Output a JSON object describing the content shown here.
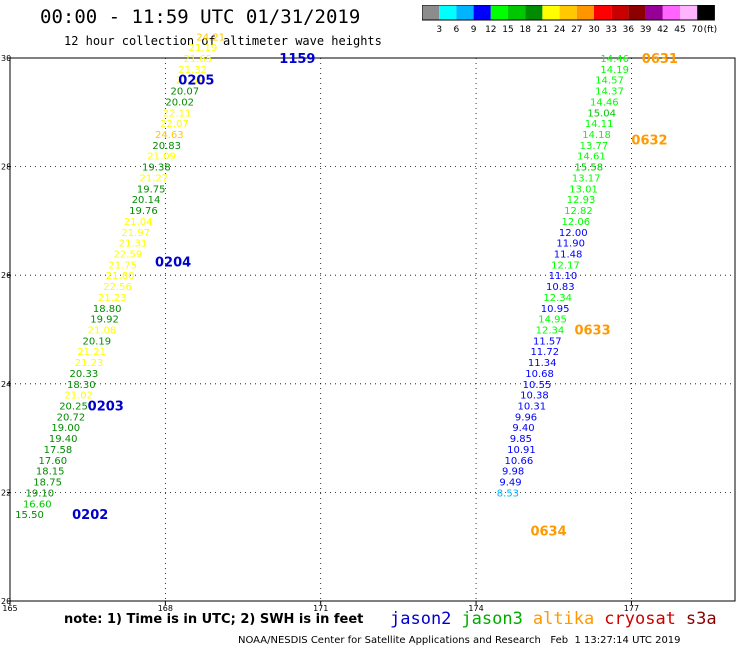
{
  "header": {
    "title": "00:00 - 11:59 UTC 01/31/2019",
    "subtitle": "12 hour collection of altimeter wave heights"
  },
  "colorbar": {
    "unit": "(ft)",
    "ticks": [
      "3",
      "6",
      "9",
      "12",
      "15",
      "18",
      "21",
      "24",
      "27",
      "30",
      "33",
      "36",
      "39",
      "42",
      "45",
      "70"
    ],
    "colors": [
      "#8c8c8c",
      "#00ffff",
      "#00b4ff",
      "#0000ff",
      "#00ff00",
      "#00c800",
      "#008c00",
      "#ffff00",
      "#ffc800",
      "#ff9600",
      "#ff0000",
      "#c80000",
      "#8c0000",
      "#960096",
      "#ff64ff",
      "#ffb4ff",
      "#000000"
    ]
  },
  "footer": {
    "note": "note: 1) Time is in UTC; 2) SWH is in feet",
    "credit": "NOAA/NESDIS Center for Satellite Applications and Research   Feb  1 13:27:14 UTC 2019"
  },
  "legend": [
    {
      "name": "jason2",
      "color": "#0000cc"
    },
    {
      "name": "jason3",
      "color": "#00aa00"
    },
    {
      "name": "altika",
      "color": "#ff9900"
    },
    {
      "name": "cryosat",
      "color": "#cc0000"
    },
    {
      "name": "s3a",
      "color": "#880000"
    }
  ],
  "chart_data": {
    "type": "scatter",
    "xlim": [
      165,
      179
    ],
    "ylim": [
      20,
      30
    ],
    "xticks": [
      "165",
      "168",
      "171",
      "174",
      "177"
    ],
    "yticks": [
      "20",
      "22",
      "24",
      "26",
      "28",
      "30"
    ],
    "grid": true,
    "passes": [
      {
        "lon": 166.2,
        "lat": 21.6,
        "text": "0202",
        "color": "#0000cc"
      },
      {
        "lon": 166.5,
        "lat": 23.6,
        "text": "0203",
        "color": "#0000cc"
      },
      {
        "lon": 167.8,
        "lat": 26.25,
        "text": "0204",
        "color": "#0000cc"
      },
      {
        "lon": 168.25,
        "lat": 29.6,
        "text": "0205",
        "color": "#0000cc"
      },
      {
        "lon": 170.2,
        "lat": 30.0,
        "text": "1159",
        "color": "#0000cc"
      },
      {
        "lon": 177.2,
        "lat": 30.0,
        "text": "0631",
        "color": "#ff9900"
      },
      {
        "lon": 177.0,
        "lat": 28.5,
        "text": "0632",
        "color": "#ff9900"
      },
      {
        "lon": 175.9,
        "lat": 25.0,
        "text": "0633",
        "color": "#ff9900"
      },
      {
        "lon": 175.05,
        "lat": 21.3,
        "text": "0634",
        "color": "#ff9900"
      }
    ],
    "series": [
      {
        "name": "altika",
        "points": [
          {
            "lon": 165.1,
            "lat": 21.6,
            "value": "15.50",
            "color": "#008c00"
          },
          {
            "lon": 165.25,
            "lat": 21.8,
            "value": "16.60",
            "color": "#00c800"
          },
          {
            "lon": 165.3,
            "lat": 22.0,
            "value": "19.10",
            "color": "#008c00"
          },
          {
            "lon": 165.45,
            "lat": 22.2,
            "value": "18.75",
            "color": "#008c00"
          },
          {
            "lon": 165.5,
            "lat": 22.4,
            "value": "18.15",
            "color": "#008c00"
          },
          {
            "lon": 165.55,
            "lat": 22.6,
            "value": "17.60",
            "color": "#008c00"
          },
          {
            "lon": 165.65,
            "lat": 22.8,
            "value": "17.58",
            "color": "#008c00"
          },
          {
            "lon": 165.75,
            "lat": 23.0,
            "value": "19.40",
            "color": "#008c00"
          },
          {
            "lon": 165.8,
            "lat": 23.2,
            "value": "19.00",
            "color": "#008c00"
          },
          {
            "lon": 165.9,
            "lat": 23.4,
            "value": "20.72",
            "color": "#008c00"
          },
          {
            "lon": 165.95,
            "lat": 23.6,
            "value": "20.25",
            "color": "#008c00"
          },
          {
            "lon": 166.05,
            "lat": 23.8,
            "value": "21.02",
            "color": "#ffff00"
          },
          {
            "lon": 166.1,
            "lat": 24.0,
            "value": "18.30",
            "color": "#008c00"
          },
          {
            "lon": 166.15,
            "lat": 24.2,
            "value": "20.33",
            "color": "#008c00"
          },
          {
            "lon": 166.25,
            "lat": 24.4,
            "value": "21.23",
            "color": "#ffff00"
          },
          {
            "lon": 166.3,
            "lat": 24.6,
            "value": "21.21",
            "color": "#ffff00"
          },
          {
            "lon": 166.4,
            "lat": 24.8,
            "value": "20.19",
            "color": "#008c00"
          },
          {
            "lon": 166.5,
            "lat": 25.0,
            "value": "21.08",
            "color": "#ffff00"
          },
          {
            "lon": 166.55,
            "lat": 25.2,
            "value": "19.92",
            "color": "#008c00"
          },
          {
            "lon": 166.6,
            "lat": 25.4,
            "value": "18.80",
            "color": "#008c00"
          },
          {
            "lon": 166.7,
            "lat": 25.6,
            "value": "21.23",
            "color": "#ffff00"
          },
          {
            "lon": 166.8,
            "lat": 25.8,
            "value": "22.56",
            "color": "#ffff00"
          },
          {
            "lon": 166.85,
            "lat": 26.0,
            "value": "21.80",
            "color": "#ffff00"
          },
          {
            "lon": 166.9,
            "lat": 26.2,
            "value": "21.75",
            "color": "#ffff00"
          },
          {
            "lon": 167.0,
            "lat": 26.4,
            "value": "22.59",
            "color": "#ffff00"
          },
          {
            "lon": 167.1,
            "lat": 26.6,
            "value": "21.31",
            "color": "#ffff00"
          },
          {
            "lon": 167.15,
            "lat": 26.8,
            "value": "21.97",
            "color": "#ffff00"
          },
          {
            "lon": 167.2,
            "lat": 27.0,
            "value": "21.04",
            "color": "#ffff00"
          },
          {
            "lon": 167.3,
            "lat": 27.2,
            "value": "19.76",
            "color": "#008c00"
          },
          {
            "lon": 167.35,
            "lat": 27.4,
            "value": "20.14",
            "color": "#008c00"
          },
          {
            "lon": 167.45,
            "lat": 27.6,
            "value": "19.75",
            "color": "#008c00"
          },
          {
            "lon": 167.5,
            "lat": 27.8,
            "value": "21.27",
            "color": "#ffff00"
          },
          {
            "lon": 167.55,
            "lat": 28.0,
            "value": "19.38",
            "color": "#008c00"
          },
          {
            "lon": 167.65,
            "lat": 28.2,
            "value": "21.09",
            "color": "#ffff00"
          },
          {
            "lon": 167.75,
            "lat": 28.4,
            "value": "20.83",
            "color": "#008c00"
          },
          {
            "lon": 167.8,
            "lat": 28.6,
            "value": "24.63",
            "color": "#ffc800"
          },
          {
            "lon": 167.9,
            "lat": 28.8,
            "value": "22.07",
            "color": "#ffff00"
          },
          {
            "lon": 167.95,
            "lat": 29.0,
            "value": "22.11",
            "color": "#ffff00"
          },
          {
            "lon": 168.0,
            "lat": 29.2,
            "value": "20.02",
            "color": "#008c00"
          },
          {
            "lon": 168.1,
            "lat": 29.4,
            "value": "20.07",
            "color": "#008c00"
          },
          {
            "lon": 168.2,
            "lat": 29.6,
            "value": "21.69",
            "color": "#ffff00"
          },
          {
            "lon": 168.25,
            "lat": 29.8,
            "value": "21.32",
            "color": "#ffff00"
          },
          {
            "lon": 168.35,
            "lat": 30.0,
            "value": "21.65",
            "color": "#ffff00"
          },
          {
            "lon": 168.45,
            "lat": 30.2,
            "value": "21.19",
            "color": "#ffff00"
          },
          {
            "lon": 168.6,
            "lat": 30.4,
            "value": "24.21",
            "color": "#ffc800"
          }
        ]
      },
      {
        "name": "jason3",
        "points": [
          {
            "lon": 176.4,
            "lat": 30.0,
            "value": "14.46",
            "color": "#00ff00"
          },
          {
            "lon": 176.4,
            "lat": 29.8,
            "value": "14.19",
            "color": "#00ff00"
          },
          {
            "lon": 176.3,
            "lat": 29.6,
            "value": "14.57",
            "color": "#00ff00"
          },
          {
            "lon": 176.3,
            "lat": 29.4,
            "value": "14.37",
            "color": "#00ff00"
          },
          {
            "lon": 176.2,
            "lat": 29.2,
            "value": "14.46",
            "color": "#00ff00"
          },
          {
            "lon": 176.15,
            "lat": 29.0,
            "value": "15.04",
            "color": "#00c800"
          },
          {
            "lon": 176.1,
            "lat": 28.8,
            "value": "14.11",
            "color": "#00ff00"
          },
          {
            "lon": 176.05,
            "lat": 28.6,
            "value": "14.18",
            "color": "#00ff00"
          },
          {
            "lon": 176.0,
            "lat": 28.4,
            "value": "13.77",
            "color": "#00ff00"
          },
          {
            "lon": 175.95,
            "lat": 28.2,
            "value": "14.61",
            "color": "#00ff00"
          },
          {
            "lon": 175.9,
            "lat": 28.0,
            "value": "15.58",
            "color": "#00c800"
          },
          {
            "lon": 175.85,
            "lat": 27.8,
            "value": "13.17",
            "color": "#00ff00"
          },
          {
            "lon": 175.8,
            "lat": 27.6,
            "value": "13.01",
            "color": "#00ff00"
          },
          {
            "lon": 175.75,
            "lat": 27.4,
            "value": "12.93",
            "color": "#00ff00"
          },
          {
            "lon": 175.7,
            "lat": 27.2,
            "value": "12.82",
            "color": "#00ff00"
          },
          {
            "lon": 175.65,
            "lat": 27.0,
            "value": "12.06",
            "color": "#00ff00"
          },
          {
            "lon": 175.6,
            "lat": 26.8,
            "value": "12.00",
            "color": "#0000ff"
          },
          {
            "lon": 175.55,
            "lat": 26.6,
            "value": "11.90",
            "color": "#0000ff"
          },
          {
            "lon": 175.5,
            "lat": 26.4,
            "value": "11.48",
            "color": "#0000ff"
          },
          {
            "lon": 175.45,
            "lat": 26.2,
            "value": "12.17",
            "color": "#00ff00"
          },
          {
            "lon": 175.4,
            "lat": 26.0,
            "value": "11.10",
            "color": "#0000ff"
          },
          {
            "lon": 175.35,
            "lat": 25.8,
            "value": "10.83",
            "color": "#0000ff"
          },
          {
            "lon": 175.3,
            "lat": 25.6,
            "value": "12.34",
            "color": "#00ff00"
          },
          {
            "lon": 175.25,
            "lat": 25.4,
            "value": "10.95",
            "color": "#0000ff"
          },
          {
            "lon": 175.2,
            "lat": 25.2,
            "value": "14.95",
            "color": "#00ff00"
          },
          {
            "lon": 175.15,
            "lat": 25.0,
            "value": "12.34",
            "color": "#00ff00"
          },
          {
            "lon": 175.1,
            "lat": 24.8,
            "value": "11.57",
            "color": "#0000ff"
          },
          {
            "lon": 175.05,
            "lat": 24.6,
            "value": "11.72",
            "color": "#0000ff"
          },
          {
            "lon": 175.0,
            "lat": 24.4,
            "value": "11.34",
            "color": "#0000ff"
          },
          {
            "lon": 174.95,
            "lat": 24.2,
            "value": "10.68",
            "color": "#0000ff"
          },
          {
            "lon": 174.9,
            "lat": 24.0,
            "value": "10.55",
            "color": "#0000ff"
          },
          {
            "lon": 174.85,
            "lat": 23.8,
            "value": "10.38",
            "color": "#0000ff"
          },
          {
            "lon": 174.8,
            "lat": 23.6,
            "value": "10.31",
            "color": "#0000ff"
          },
          {
            "lon": 174.75,
            "lat": 23.4,
            "value": "9.96",
            "color": "#0000ff"
          },
          {
            "lon": 174.7,
            "lat": 23.2,
            "value": "9.40",
            "color": "#0000ff"
          },
          {
            "lon": 174.65,
            "lat": 23.0,
            "value": "9.85",
            "color": "#0000ff"
          },
          {
            "lon": 174.6,
            "lat": 22.8,
            "value": "10.91",
            "color": "#0000ff"
          },
          {
            "lon": 174.55,
            "lat": 22.6,
            "value": "10.66",
            "color": "#0000ff"
          },
          {
            "lon": 174.5,
            "lat": 22.4,
            "value": "9.98",
            "color": "#0000ff"
          },
          {
            "lon": 174.45,
            "lat": 22.2,
            "value": "9.49",
            "color": "#0000ff"
          },
          {
            "lon": 174.4,
            "lat": 22.0,
            "value": "8.53",
            "color": "#00b4ff"
          }
        ]
      }
    ]
  }
}
